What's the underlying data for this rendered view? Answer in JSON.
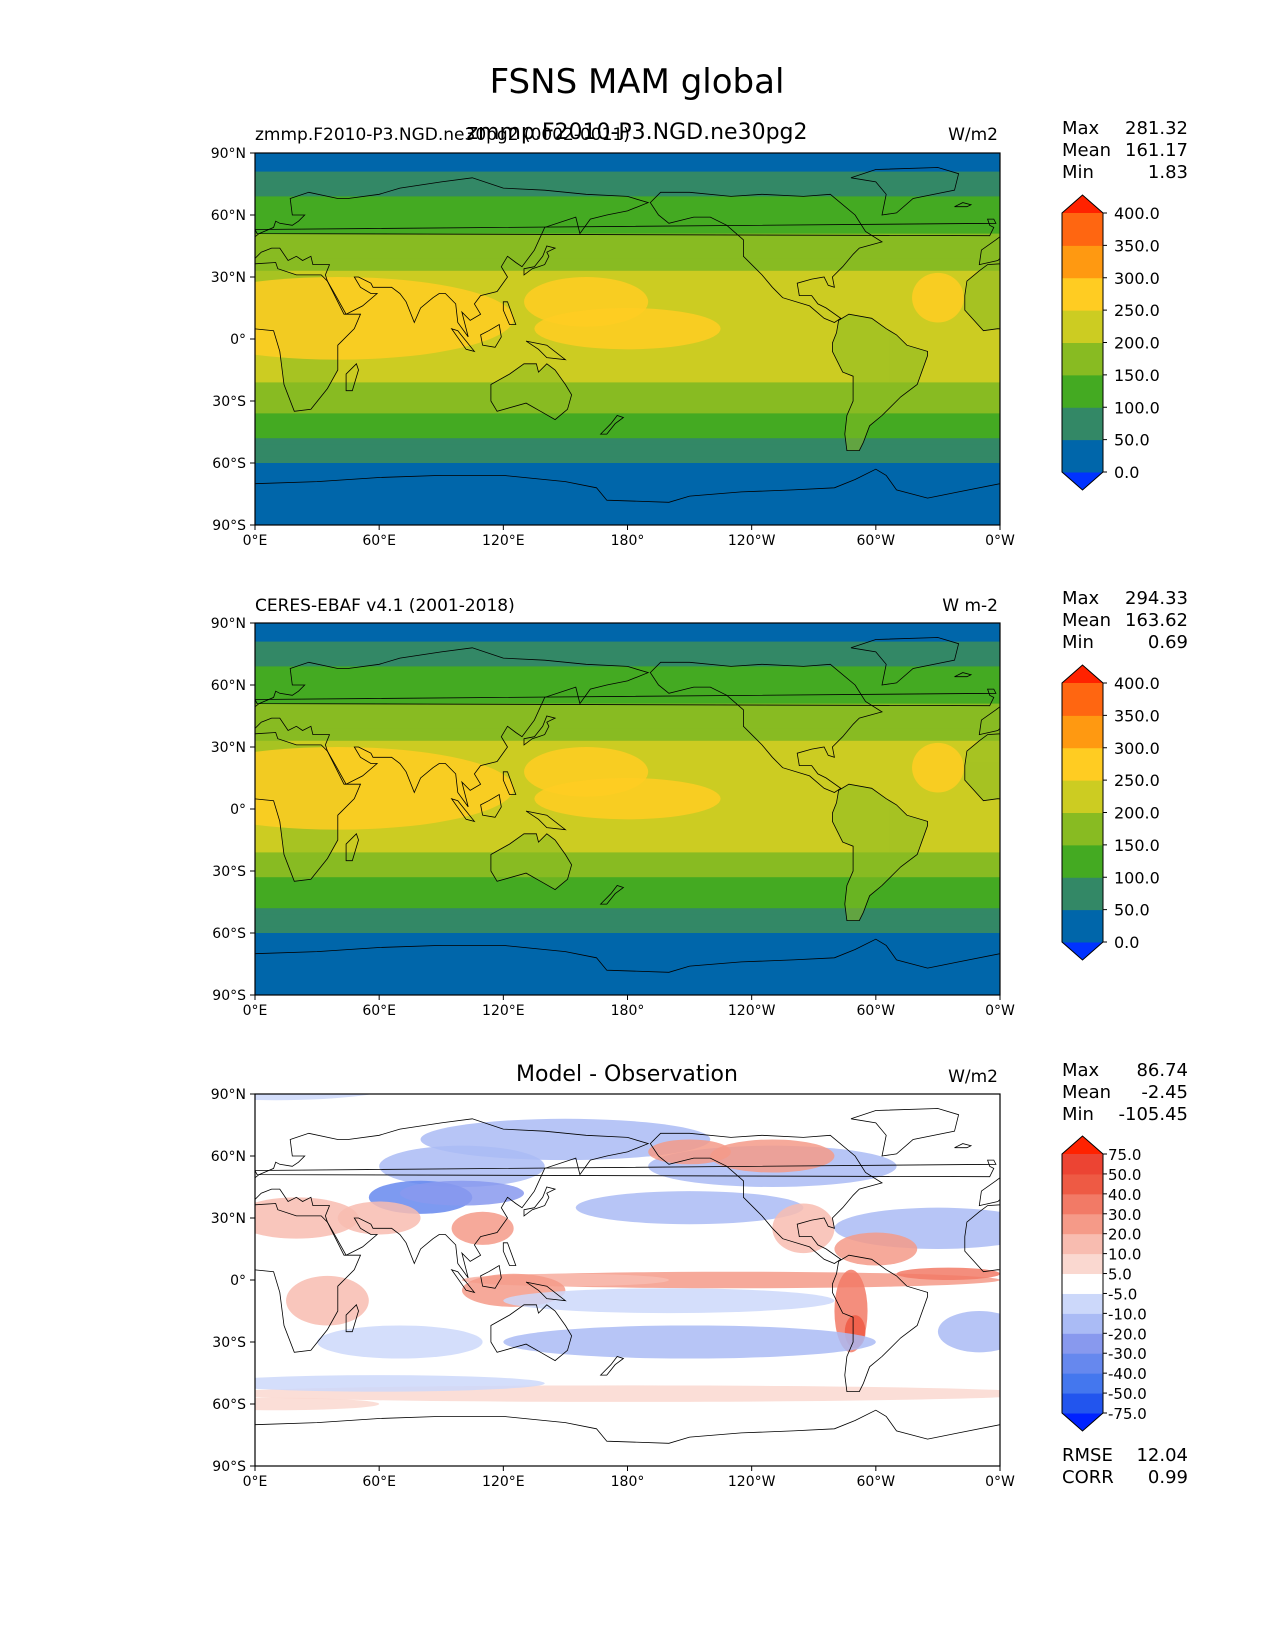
{
  "figure": {
    "title": "FSNS MAM global"
  },
  "panels": [
    {
      "left_title": "zmmp.F2010-P3.NGD.ne30pg2 (0002-0011)",
      "center_title": "zmmp.F2010-P3.NGD.ne30pg2",
      "units": "W/m2",
      "stats": {
        "max_label": "Max",
        "max": "281.32",
        "mean_label": "Mean",
        "mean": "161.17",
        "min_label": "Min",
        "min": "1.83"
      }
    },
    {
      "left_title": "CERES-EBAF v4.1 (2001-2018)",
      "center_title": "",
      "units": "W m-2",
      "stats": {
        "max_label": "Max",
        "max": "294.33",
        "mean_label": "Mean",
        "mean": "163.62",
        "min_label": "Min",
        "min": "0.69"
      }
    },
    {
      "left_title": "",
      "center_title": "Model - Observation",
      "units": "W/m2",
      "stats": {
        "max_label": "Max",
        "max": "86.74",
        "mean_label": "Mean",
        "mean": "-2.45",
        "min_label": "Min",
        "min": "-105.45"
      },
      "extra_stats": {
        "rmse_label": "RMSE",
        "rmse": "12.04",
        "corr_label": "CORR",
        "corr": "0.99"
      }
    }
  ],
  "axes": {
    "x_ticks": [
      "0°E",
      "60°E",
      "120°E",
      "180°",
      "120°W",
      "60°W",
      "0°W"
    ],
    "y_ticks": [
      "90°N",
      "60°N",
      "30°N",
      "0°",
      "30°S",
      "60°S",
      "90°S"
    ]
  },
  "colorbars": {
    "field": {
      "levels": [
        "0.0",
        "50.0",
        "100.0",
        "150.0",
        "200.0",
        "250.0",
        "300.0",
        "350.0",
        "400.0"
      ],
      "colors": [
        "#0033ff",
        "#0066aa",
        "#338866",
        "#44aa22",
        "#88bb22",
        "#cccc22",
        "#ffcc22",
        "#ff9911",
        "#ff6611",
        "#ff2200"
      ]
    },
    "diff": {
      "levels": [
        "-75.0",
        "-50.0",
        "-40.0",
        "-30.0",
        "-20.0",
        "-10.0",
        "-5.0",
        "5.0",
        "10.0",
        "20.0",
        "30.0",
        "40.0",
        "50.0",
        "75.0"
      ],
      "colors": [
        "#0022ff",
        "#2255ee",
        "#4477ee",
        "#6688ee",
        "#8899ee",
        "#aabbf5",
        "#ccd8fa",
        "#ffffff",
        "#fad8d0",
        "#f8bcb0",
        "#f59a88",
        "#f27a66",
        "#ee5a44",
        "#ec4433",
        "#ff2200"
      ]
    }
  },
  "chart_data": [
    {
      "type": "heatmap",
      "title": "zmmp.F2010-P3.NGD.ne30pg2",
      "description_source": "model",
      "variable": "FSNS",
      "season": "MAM",
      "units": "W/m2",
      "xlim": [
        0,
        360
      ],
      "ylim": [
        -90,
        90
      ],
      "zonal_mean_profile": {
        "lat": [
          90,
          80,
          70,
          60,
          50,
          40,
          30,
          20,
          10,
          0,
          -10,
          -20,
          -30,
          -40,
          -50,
          -60,
          -70,
          -80,
          -90
        ],
        "value": [
          20,
          50,
          100,
          130,
          150,
          175,
          215,
          235,
          225,
          220,
          215,
          200,
          170,
          130,
          90,
          50,
          25,
          10,
          5
        ]
      },
      "max": 281.32,
      "mean": 161.17,
      "min": 1.83
    },
    {
      "type": "heatmap",
      "title": "CERES-EBAF v4.1 (2001-2018)",
      "description_source": "observation",
      "units": "W m-2",
      "xlim": [
        0,
        360
      ],
      "ylim": [
        -90,
        90
      ],
      "zonal_mean_profile": {
        "lat": [
          90,
          80,
          70,
          60,
          50,
          40,
          30,
          20,
          10,
          0,
          -10,
          -20,
          -30,
          -40,
          -50,
          -60,
          -70,
          -80,
          -90
        ],
        "value": [
          20,
          50,
          100,
          125,
          150,
          175,
          210,
          235,
          230,
          220,
          215,
          200,
          165,
          125,
          90,
          50,
          25,
          10,
          5
        ]
      },
      "max": 294.33,
      "mean": 163.62,
      "min": 0.69
    },
    {
      "type": "heatmap",
      "title": "Model - Observation",
      "units": "W/m2",
      "xlim": [
        0,
        360
      ],
      "ylim": [
        -90,
        90
      ],
      "max": 86.74,
      "mean": -2.45,
      "min": -105.45,
      "rmse": 12.04,
      "corr": 0.99
    }
  ]
}
